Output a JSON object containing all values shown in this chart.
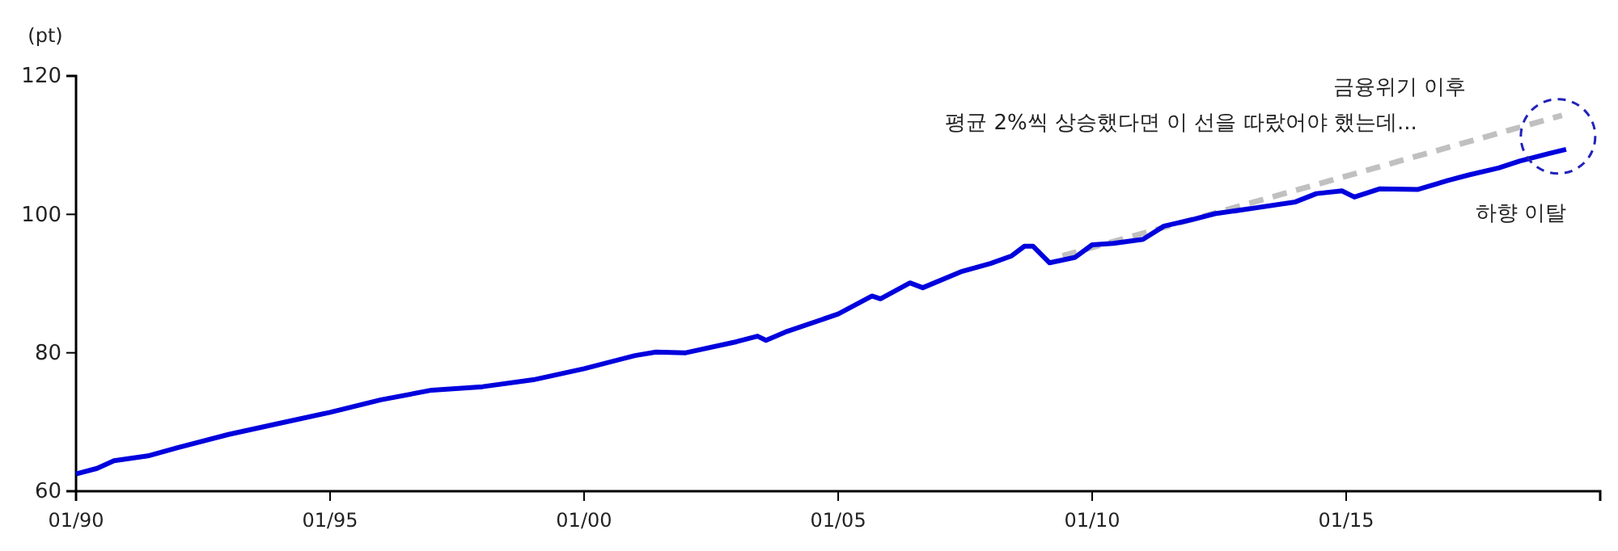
{
  "chart_data": {
    "type": "line",
    "ylabel": "(pt)",
    "xlim": [
      "1990-01",
      "2020-01"
    ],
    "xticks": [
      {
        "value": "1990-01",
        "label": "01/90"
      },
      {
        "value": "1995-01",
        "label": "01/95"
      },
      {
        "value": "2000-01",
        "label": "01/00"
      },
      {
        "value": "2005-01",
        "label": "01/05"
      },
      {
        "value": "2010-01",
        "label": "01/10"
      },
      {
        "value": "2015-01",
        "label": "01/15"
      },
      {
        "value": "2020-01",
        "label": null
      }
    ],
    "ylim": [
      60,
      120
    ],
    "yticks": [
      60,
      80,
      100,
      120
    ],
    "grid": false,
    "series": [
      {
        "color": "#0000dd",
        "line_style": "solid",
        "x": [
          "1990-01",
          "1990-06",
          "1990-10",
          "1991-06",
          "1992-01",
          "1993-01",
          "1994-01",
          "1995-01",
          "1996-01",
          "1997-01",
          "1998-01",
          "1999-01",
          "2000-01",
          "2001-01",
          "2001-06",
          "2002-01",
          "2003-01",
          "2003-06",
          "2003-08",
          "2004-01",
          "2005-01",
          "2005-09",
          "2005-11",
          "2006-06",
          "2006-09",
          "2007-06",
          "2008-01",
          "2008-06",
          "2008-09",
          "2008-11",
          "2009-03",
          "2009-09",
          "2010-01",
          "2010-06",
          "2011-01",
          "2011-06",
          "2012-01",
          "2012-06",
          "2013-01",
          "2014-01",
          "2014-06",
          "2014-12",
          "2015-03",
          "2015-09",
          "2016-06",
          "2017-01",
          "2017-06",
          "2018-01",
          "2018-06",
          "2019-01",
          "2019-05"
        ],
        "values": [
          62.5,
          63.3,
          64.4,
          65.1,
          66.3,
          68.2,
          69.8,
          71.4,
          73.2,
          74.6,
          75.1,
          76.1,
          77.7,
          79.6,
          80.1,
          80.0,
          81.6,
          82.4,
          81.8,
          83.1,
          85.6,
          88.2,
          87.8,
          90.1,
          89.4,
          91.7,
          92.9,
          94.0,
          95.4,
          95.4,
          93.0,
          93.8,
          95.6,
          95.8,
          96.4,
          98.3,
          99.3,
          100.1,
          100.7,
          101.8,
          103.0,
          103.4,
          102.5,
          103.7,
          103.6,
          104.9,
          105.7,
          106.7,
          107.7,
          108.8,
          109.4
        ]
      },
      {
        "type": "line",
        "color": "#c0c0c0",
        "line_style": "dashed",
        "x": [
          "2009-06",
          "2019-04"
        ],
        "values": [
          94.0,
          114.3
        ]
      }
    ],
    "annotations": [
      "금융위기 이후",
      "평균 2%씩 상승했다면 이 선을 따랐어야 했는데...",
      "하향 이탈"
    ]
  }
}
